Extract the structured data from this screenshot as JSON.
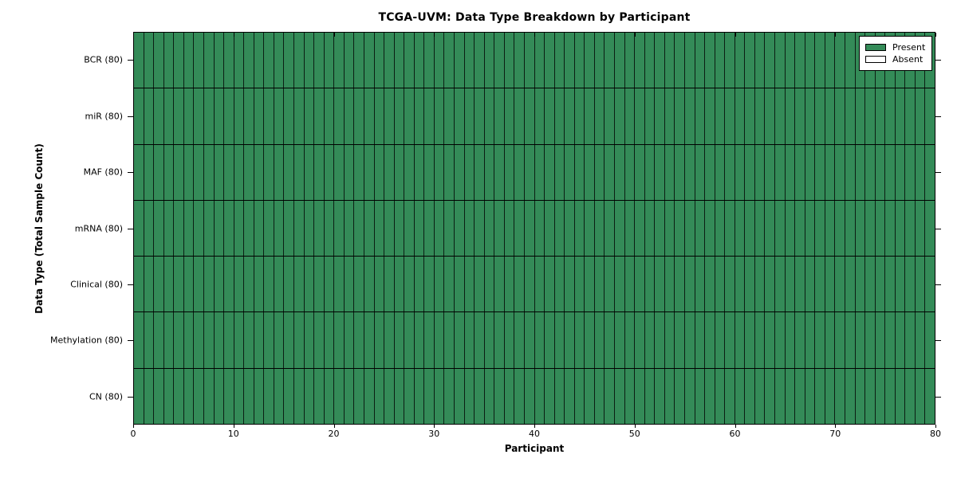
{
  "title": "TCGA-UVM: Data Type Breakdown by Participant",
  "xlabel": "Participant",
  "ylabel": "Data Type (Total Sample Count)",
  "colors": {
    "present": "#348b58",
    "absent": "#ffffff",
    "cell_line": "rgba(0,0,0,0.78)",
    "row_line": "#000000",
    "axis": "#000000",
    "background": "#ffffff"
  },
  "chart_data": {
    "type": "heatmap",
    "title": "TCGA-UVM: Data Type Breakdown by Participant",
    "xlabel": "Participant",
    "ylabel": "Data Type (Total Sample Count)",
    "x_range": [
      0,
      80
    ],
    "x_ticks": [
      0,
      10,
      20,
      30,
      40,
      50,
      60,
      70,
      80
    ],
    "n_participants": 80,
    "grid": "cell-borders",
    "legend_position": "upper right",
    "legend_entries": [
      {
        "label": "Present",
        "color": "#348b58"
      },
      {
        "label": "Absent",
        "color": "#ffffff"
      }
    ],
    "rows": [
      {
        "label": "BCR (80)",
        "data_type": "BCR",
        "total_samples": 80,
        "present_count": 80,
        "absent_count": 0
      },
      {
        "label": "miR (80)",
        "data_type": "miR",
        "total_samples": 80,
        "present_count": 80,
        "absent_count": 0
      },
      {
        "label": "MAF (80)",
        "data_type": "MAF",
        "total_samples": 80,
        "present_count": 80,
        "absent_count": 0
      },
      {
        "label": "mRNA (80)",
        "data_type": "mRNA",
        "total_samples": 80,
        "present_count": 80,
        "absent_count": 0
      },
      {
        "label": "Clinical (80)",
        "data_type": "Clinical",
        "total_samples": 80,
        "present_count": 80,
        "absent_count": 0
      },
      {
        "label": "Methylation (80)",
        "data_type": "Methylation",
        "total_samples": 80,
        "present_count": 80,
        "absent_count": 0
      },
      {
        "label": "CN (80)",
        "data_type": "CN",
        "total_samples": 80,
        "present_count": 80,
        "absent_count": 0
      }
    ]
  }
}
